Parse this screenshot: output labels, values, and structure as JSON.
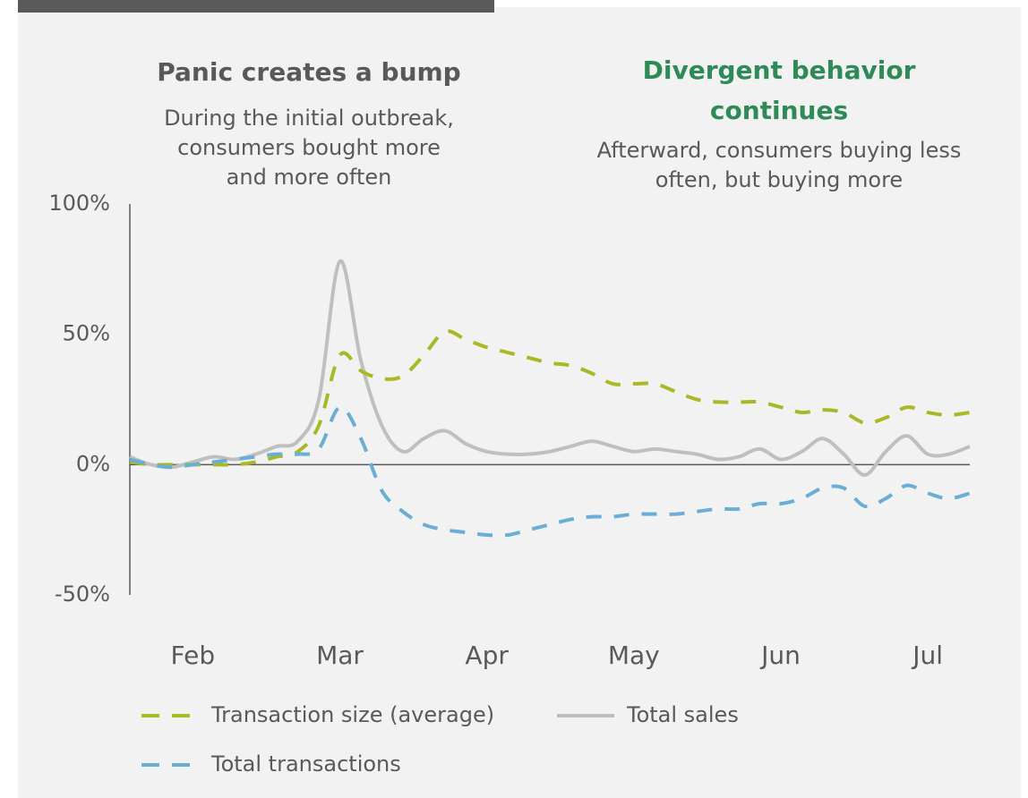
{
  "chart_data": {
    "type": "line",
    "annotations": [
      {
        "title": [
          "Panic creates a bump"
        ],
        "text": [
          "During the initial outbreak,",
          "consumers bought more",
          "and more often"
        ],
        "color": "#595959"
      },
      {
        "title": [
          "Divergent behavior",
          "continues"
        ],
        "text": [
          "Afterward, consumers buying less",
          "often, but buying more"
        ],
        "color": "#2e8b57"
      }
    ],
    "categories": [
      null,
      null,
      null,
      "Feb",
      null,
      null,
      null,
      null,
      null,
      null,
      "Mar",
      null,
      null,
      null,
      null,
      null,
      null,
      "Apr",
      null,
      null,
      null,
      null,
      null,
      null,
      "May",
      null,
      null,
      null,
      null,
      null,
      null,
      "Jun",
      null,
      null,
      null,
      null,
      null,
      null,
      "Jul",
      null,
      null
    ],
    "series": [
      {
        "name": "Transaction size (average)",
        "color": "#a9b824",
        "dashed": true,
        "values": [
          1,
          0,
          0,
          0,
          0,
          0,
          1,
          3,
          5,
          15,
          42,
          36,
          33,
          34,
          42,
          51,
          48,
          45,
          43,
          41,
          39,
          38,
          35,
          31,
          31,
          31,
          28,
          25,
          24,
          24,
          24,
          22,
          20,
          21,
          20,
          16,
          18,
          22,
          20,
          19,
          20
        ]
      },
      {
        "name": "Total sales",
        "color": "#bfbfbf",
        "dashed": false,
        "values": [
          3,
          0,
          -1,
          1,
          3,
          2,
          4,
          7,
          9,
          25,
          78,
          40,
          15,
          5,
          10,
          13,
          8,
          5,
          4,
          4,
          5,
          7,
          9,
          7,
          5,
          6,
          5,
          4,
          2,
          3,
          6,
          2,
          5,
          10,
          4,
          -4,
          5,
          11,
          4,
          4,
          7
        ]
      },
      {
        "name": "Total transactions",
        "color": "#6aaed6",
        "dashed": true,
        "values": [
          2,
          0,
          -1,
          0,
          1,
          2,
          3,
          4,
          4,
          6,
          22,
          10,
          -10,
          -18,
          -23,
          -25,
          -26,
          -27,
          -27,
          -25,
          -23,
          -21,
          -20,
          -20,
          -19,
          -19,
          -19,
          -18,
          -17,
          -17,
          -15,
          -15,
          -13,
          -9,
          -9,
          -16,
          -13,
          -8,
          -11,
          -13,
          -11
        ]
      }
    ],
    "ylim": [
      -50,
      100
    ],
    "yticks": [
      {
        "value": -50,
        "label": "-50%"
      },
      {
        "value": 0,
        "label": "0%"
      },
      {
        "value": 50,
        "label": "50%"
      },
      {
        "value": 100,
        "label": "100%"
      }
    ],
    "zero_line": true
  }
}
